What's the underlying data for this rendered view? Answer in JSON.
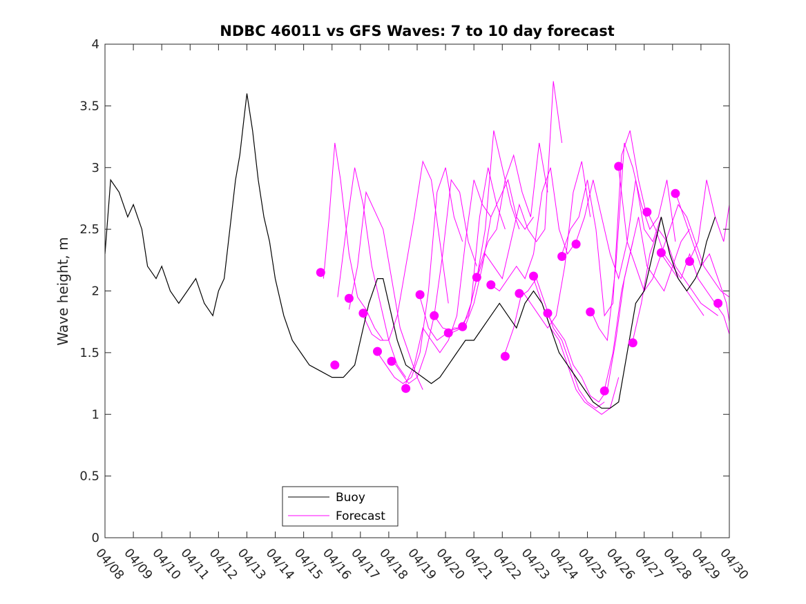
{
  "chart_data": {
    "type": "line",
    "title": "NDBC 46011 vs GFS Waves: 7 to 10 day forecast",
    "xlabel": "",
    "ylabel": "Wave height, m",
    "xlim": [
      "04/08",
      "04/30"
    ],
    "ylim": [
      0,
      4
    ],
    "x_tick_labels": [
      "04/08",
      "04/09",
      "04/10",
      "04/11",
      "04/12",
      "04/13",
      "04/14",
      "04/15",
      "04/16",
      "04/17",
      "04/18",
      "04/19",
      "04/20",
      "04/21",
      "04/22",
      "04/23",
      "04/24",
      "04/25",
      "04/26",
      "04/27",
      "04/28",
      "04/29",
      "04/30"
    ],
    "y_tick_labels": [
      "0",
      "0.5",
      "1",
      "1.5",
      "2",
      "2.5",
      "3",
      "3.5",
      "4"
    ],
    "y_ticks": [
      0,
      0.5,
      1,
      1.5,
      2,
      2.5,
      3,
      3.5,
      4
    ],
    "grid": false,
    "legend": {
      "position": "bottom-left",
      "entries": [
        {
          "name": "Buoy",
          "color": "#000000"
        },
        {
          "name": "Forecast",
          "color": "#ff00ff"
        }
      ]
    },
    "colors": {
      "buoy": "#000000",
      "forecast": "#ff00ff"
    },
    "buoy": {
      "name": "Buoy",
      "x_days_after_0408": [
        0,
        0.2,
        0.5,
        0.8,
        1.0,
        1.3,
        1.5,
        1.8,
        2.0,
        2.3,
        2.6,
        2.9,
        3.2,
        3.5,
        3.8,
        4.0,
        4.2,
        4.4,
        4.6,
        4.75,
        4.9,
        5.0,
        5.2,
        5.4,
        5.6,
        5.8,
        6.0,
        6.3,
        6.6,
        6.9,
        7.2,
        7.6,
        8.0,
        8.4,
        8.8,
        9.0,
        9.3,
        9.6,
        9.8,
        10.0,
        10.3,
        10.6,
        10.9,
        11.2,
        11.5,
        11.8,
        12.1,
        12.4,
        12.7,
        13.0,
        13.3,
        13.6,
        13.9,
        14.2,
        14.5,
        14.8,
        15.1,
        15.4,
        15.7,
        16.0,
        16.3,
        16.6,
        16.9,
        17.2,
        17.5,
        17.8,
        18.1,
        18.4,
        18.7,
        19.0,
        19.3,
        19.6,
        19.9,
        20.2,
        20.5,
        20.8,
        21.0,
        21.2,
        21.5
      ],
      "y": [
        2.3,
        2.9,
        2.8,
        2.6,
        2.7,
        2.5,
        2.2,
        2.1,
        2.2,
        2.0,
        1.9,
        2.0,
        2.1,
        1.9,
        1.8,
        2.0,
        2.1,
        2.5,
        2.9,
        3.1,
        3.4,
        3.6,
        3.3,
        2.9,
        2.6,
        2.4,
        2.1,
        1.8,
        1.6,
        1.5,
        1.4,
        1.35,
        1.3,
        1.3,
        1.4,
        1.6,
        1.9,
        2.1,
        2.1,
        1.9,
        1.6,
        1.4,
        1.35,
        1.3,
        1.25,
        1.3,
        1.4,
        1.5,
        1.6,
        1.6,
        1.7,
        1.8,
        1.9,
        1.8,
        1.7,
        1.9,
        2.0,
        1.9,
        1.7,
        1.5,
        1.4,
        1.3,
        1.2,
        1.1,
        1.05,
        1.05,
        1.1,
        1.5,
        1.9,
        2.0,
        2.3,
        2.6,
        2.3,
        2.1,
        2.0,
        2.1,
        2.2,
        2.4,
        2.6
      ]
    },
    "forecast_points": {
      "name": "Forecast",
      "x_days_after_0408": [
        7.6,
        8.1,
        8.6,
        9.1,
        9.6,
        10.1,
        10.6,
        11.1,
        11.6,
        12.1,
        12.6,
        13.1,
        13.6,
        14.1,
        14.6,
        15.1,
        15.6,
        16.1,
        16.6,
        17.1,
        17.6,
        18.1,
        18.6,
        19.1,
        19.6,
        20.1,
        20.6,
        21.6
      ],
      "y": [
        2.15,
        1.4,
        1.94,
        1.82,
        1.51,
        1.43,
        1.21,
        1.97,
        1.8,
        1.66,
        1.71,
        2.11,
        2.05,
        1.47,
        1.98,
        2.12,
        1.82,
        2.28,
        2.38,
        1.83,
        1.19,
        3.01,
        1.58,
        2.64,
        2.31,
        2.79,
        2.24,
        1.9
      ]
    },
    "forecast_series": [
      {
        "x_days_after_0408": [
          7.7,
          7.9,
          8.1,
          8.3,
          8.6,
          8.9,
          9.2,
          9.5,
          9.8
        ],
        "y": [
          2.1,
          2.6,
          3.2,
          2.9,
          2.3,
          1.95,
          1.85,
          1.7,
          1.6
        ]
      },
      {
        "x_days_after_0408": [
          8.2,
          8.5,
          8.8,
          9.1,
          9.4,
          9.7,
          10.0,
          10.3,
          10.6
        ],
        "y": [
          1.95,
          2.5,
          3.0,
          2.7,
          2.2,
          1.9,
          1.6,
          1.4,
          1.3
        ]
      },
      {
        "x_days_after_0408": [
          8.6,
          8.9,
          9.2,
          9.5,
          9.8,
          10.1,
          10.4,
          10.7,
          11.0,
          11.2
        ],
        "y": [
          1.85,
          2.2,
          2.8,
          2.65,
          2.5,
          2.1,
          1.7,
          1.5,
          1.3,
          1.2
        ]
      },
      {
        "x_days_after_0408": [
          9.1,
          9.4,
          9.7,
          10.0,
          10.3,
          10.6,
          10.9,
          11.2,
          11.5,
          11.8,
          12.1
        ],
        "y": [
          1.8,
          1.65,
          1.6,
          1.6,
          1.8,
          2.2,
          2.6,
          3.05,
          2.9,
          2.4,
          1.9
        ]
      },
      {
        "x_days_after_0408": [
          9.6,
          9.9,
          10.2,
          10.5,
          10.8,
          11.1,
          11.4,
          11.7,
          12.0,
          12.3,
          12.6
        ],
        "y": [
          1.5,
          1.4,
          1.3,
          1.25,
          1.3,
          1.5,
          2.0,
          2.8,
          3.0,
          2.6,
          2.4
        ]
      },
      {
        "x_days_after_0408": [
          10.1,
          10.4,
          10.7,
          11.0,
          11.3,
          11.6,
          11.9,
          12.2,
          12.5,
          12.8,
          13.1
        ],
        "y": [
          1.45,
          1.35,
          1.25,
          1.3,
          1.5,
          1.8,
          2.3,
          2.9,
          2.8,
          2.4,
          2.2
        ]
      },
      {
        "x_days_after_0408": [
          10.6,
          10.9,
          11.2,
          11.5,
          11.8,
          12.1,
          12.4,
          12.7,
          13.0,
          13.3,
          13.6
        ],
        "y": [
          1.25,
          1.4,
          1.7,
          1.6,
          1.5,
          1.6,
          1.8,
          2.4,
          2.9,
          2.7,
          2.6
        ]
      },
      {
        "x_days_after_0408": [
          11.1,
          11.4,
          11.7,
          12.0,
          12.3,
          12.6,
          12.9,
          13.2,
          13.5,
          13.8,
          14.1
        ],
        "y": [
          1.95,
          1.7,
          1.6,
          1.65,
          1.7,
          1.7,
          1.9,
          2.6,
          3.0,
          2.7,
          2.5
        ]
      },
      {
        "x_days_after_0408": [
          11.6,
          11.9,
          12.2,
          12.5,
          12.8,
          13.1,
          13.4,
          13.7,
          14.0,
          14.3,
          14.6
        ],
        "y": [
          1.8,
          1.7,
          1.68,
          1.7,
          1.8,
          2.1,
          2.5,
          3.3,
          3.0,
          2.7,
          2.5
        ]
      },
      {
        "x_days_after_0408": [
          12.1,
          12.4,
          12.7,
          13.0,
          13.3,
          13.6,
          13.9,
          14.2,
          14.5,
          14.8,
          15.1
        ],
        "y": [
          1.65,
          1.68,
          1.72,
          1.9,
          2.2,
          2.6,
          2.75,
          2.9,
          2.6,
          2.5,
          2.6
        ]
      },
      {
        "x_days_after_0408": [
          12.6,
          12.9,
          13.2,
          13.5,
          13.8,
          14.1,
          14.4,
          14.7,
          15.0,
          15.3,
          15.6
        ],
        "y": [
          1.7,
          1.9,
          2.2,
          2.4,
          2.5,
          2.9,
          3.1,
          2.8,
          2.6,
          3.2,
          2.8
        ]
      },
      {
        "x_days_after_0408": [
          13.1,
          13.4,
          13.7,
          14.0,
          14.3,
          14.6,
          14.9,
          15.2,
          15.5,
          15.8,
          16.1
        ],
        "y": [
          2.1,
          2.3,
          2.2,
          2.1,
          2.4,
          2.7,
          2.5,
          2.4,
          2.5,
          3.7,
          3.2
        ]
      },
      {
        "x_days_after_0408": [
          13.6,
          13.9,
          14.2,
          14.5,
          14.8,
          15.1,
          15.4,
          15.7,
          16.0,
          16.3,
          16.6
        ],
        "y": [
          2.05,
          2.0,
          2.1,
          2.2,
          2.1,
          2.3,
          2.8,
          3.0,
          2.5,
          2.3,
          2.4
        ]
      },
      {
        "x_days_after_0408": [
          14.1,
          14.4,
          14.7,
          15.0,
          15.3,
          15.6,
          15.9,
          16.2,
          16.5,
          16.8,
          17.1
        ],
        "y": [
          1.5,
          1.7,
          2.0,
          1.9,
          1.8,
          1.7,
          1.8,
          2.2,
          2.8,
          3.05,
          2.6
        ]
      },
      {
        "x_days_after_0408": [
          14.6,
          14.9,
          15.2,
          15.5,
          15.8,
          16.1,
          16.4,
          16.7,
          17.0,
          17.3,
          17.6
        ],
        "y": [
          1.95,
          2.0,
          2.1,
          1.9,
          1.7,
          1.6,
          1.4,
          1.2,
          1.1,
          1.05,
          1.1
        ]
      },
      {
        "x_days_after_0408": [
          15.1,
          15.4,
          15.7,
          16.0,
          16.3,
          16.6,
          16.9,
          17.2,
          17.5,
          17.8,
          18.1
        ],
        "y": [
          2.1,
          1.9,
          1.7,
          1.6,
          1.4,
          1.2,
          1.1,
          1.05,
          1.0,
          1.05,
          1.3
        ]
      },
      {
        "x_days_after_0408": [
          15.6,
          15.9,
          16.2,
          16.5,
          16.8,
          17.1,
          17.4,
          17.7,
          18.0,
          18.3,
          18.6
        ],
        "y": [
          1.8,
          1.7,
          1.6,
          1.4,
          1.3,
          1.15,
          1.1,
          1.2,
          1.6,
          2.1,
          2.4
        ]
      },
      {
        "x_days_after_0408": [
          16.1,
          16.4,
          16.7,
          17.0,
          17.3,
          17.6,
          17.9,
          18.2,
          18.5,
          18.8,
          19.1
        ],
        "y": [
          2.3,
          2.5,
          2.6,
          2.9,
          2.5,
          1.8,
          1.9,
          3.1,
          3.3,
          2.9,
          2.6
        ]
      },
      {
        "x_days_after_0408": [
          16.6,
          16.9,
          17.2,
          17.5,
          17.8,
          18.1,
          18.4,
          18.7,
          19.0,
          19.3,
          19.6
        ],
        "y": [
          2.4,
          2.6,
          2.9,
          2.6,
          2.3,
          2.1,
          2.4,
          2.9,
          2.5,
          2.4,
          2.6
        ]
      },
      {
        "x_days_after_0408": [
          17.1,
          17.4,
          17.7,
          18.0,
          18.3,
          18.6,
          18.9,
          19.2,
          19.5,
          19.8,
          20.1
        ],
        "y": [
          1.85,
          1.7,
          1.6,
          2.2,
          3.2,
          3.0,
          2.7,
          2.5,
          2.6,
          2.9,
          2.4
        ]
      },
      {
        "x_days_after_0408": [
          17.6,
          17.9,
          18.2,
          18.5,
          18.8,
          19.1,
          19.4,
          19.7,
          20.0,
          20.3,
          20.6
        ],
        "y": [
          1.2,
          1.5,
          2.0,
          2.3,
          2.6,
          2.2,
          2.1,
          2.0,
          2.2,
          2.4,
          2.5
        ]
      },
      {
        "x_days_after_0408": [
          18.1,
          18.4,
          18.7,
          19.0,
          19.3,
          19.6,
          19.9,
          20.2,
          20.5,
          20.8,
          21.1
        ],
        "y": [
          3.0,
          2.4,
          2.2,
          2.0,
          2.1,
          2.3,
          2.2,
          2.1,
          2.0,
          1.9,
          1.8
        ]
      },
      {
        "x_days_after_0408": [
          18.6,
          18.9,
          19.2,
          19.5,
          19.8,
          20.1,
          20.4,
          20.7,
          21.0,
          21.3,
          21.6
        ],
        "y": [
          1.6,
          1.9,
          2.3,
          2.5,
          2.4,
          2.2,
          2.1,
          2.0,
          1.9,
          1.85,
          1.8
        ]
      },
      {
        "x_days_after_0408": [
          19.1,
          19.4,
          19.7,
          20.0,
          20.3,
          20.6,
          20.9,
          21.2,
          21.5,
          21.8,
          22.0
        ],
        "y": [
          2.65,
          2.5,
          2.3,
          2.2,
          2.1,
          2.3,
          2.1,
          2.0,
          1.9,
          1.8,
          1.65
        ]
      },
      {
        "x_days_after_0408": [
          19.6,
          19.9,
          20.2,
          20.5,
          20.8,
          21.1,
          21.4,
          21.7,
          22.0
        ],
        "y": [
          2.3,
          2.5,
          2.7,
          2.6,
          2.4,
          2.2,
          2.1,
          2.0,
          1.95
        ]
      },
      {
        "x_days_after_0408": [
          20.1,
          20.4,
          20.7,
          21.0,
          21.3,
          21.6,
          21.9,
          22.0
        ],
        "y": [
          2.8,
          2.6,
          2.4,
          2.2,
          2.3,
          2.1,
          1.9,
          1.75
        ]
      },
      {
        "x_days_after_0408": [
          20.6,
          20.9,
          21.2,
          21.5,
          21.8,
          22.0
        ],
        "y": [
          2.25,
          2.4,
          2.9,
          2.6,
          2.4,
          2.7
        ]
      }
    ]
  }
}
